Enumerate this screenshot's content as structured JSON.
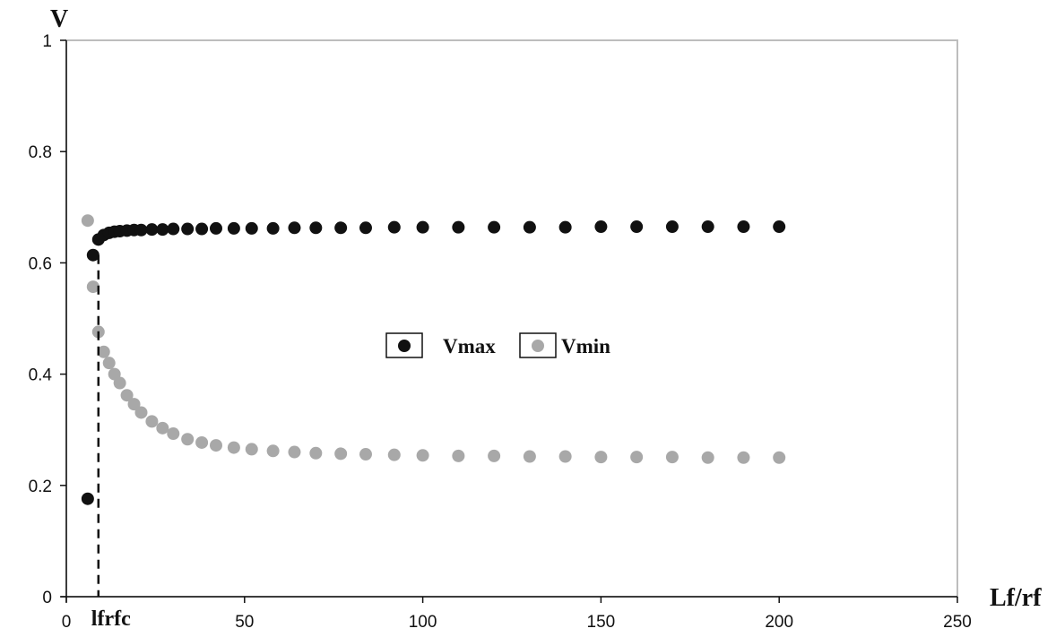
{
  "chart_data": {
    "type": "scatter",
    "title": "",
    "xlabel": "Lf/rf",
    "ylabel": "V",
    "xlim": [
      0,
      250
    ],
    "ylim": [
      0,
      1
    ],
    "x_ticks": [
      "0",
      "50",
      "100",
      "150",
      "200",
      "250"
    ],
    "y_ticks": [
      "0",
      "0.2",
      "0.4",
      "0.6",
      "0.8",
      "1"
    ],
    "grid": false,
    "legend": "center",
    "annotations": [
      {
        "text": "lfrfc",
        "x": 9
      }
    ],
    "series": [
      {
        "name": "Vmax",
        "color": "#111111",
        "x": [
          6,
          7.5,
          9,
          10.5,
          12,
          13.5,
          15,
          17,
          19,
          21,
          24,
          27,
          30,
          34,
          38,
          42,
          47,
          52,
          58,
          64,
          70,
          77,
          84,
          92,
          100,
          110,
          120,
          130,
          140,
          150,
          160,
          170,
          180,
          190,
          200
        ],
        "y": [
          0.176,
          0.614,
          0.642,
          0.65,
          0.654,
          0.656,
          0.657,
          0.658,
          0.659,
          0.659,
          0.66,
          0.66,
          0.661,
          0.661,
          0.661,
          0.662,
          0.662,
          0.662,
          0.662,
          0.663,
          0.663,
          0.663,
          0.663,
          0.664,
          0.664,
          0.664,
          0.664,
          0.664,
          0.664,
          0.665,
          0.665,
          0.665,
          0.665,
          0.665,
          0.665
        ]
      },
      {
        "name": "Vmin",
        "color": "#a8a8a8",
        "x": [
          6,
          7.5,
          9,
          10.5,
          12,
          13.5,
          15,
          17,
          19,
          21,
          24,
          27,
          30,
          34,
          38,
          42,
          47,
          52,
          58,
          64,
          70,
          77,
          84,
          92,
          100,
          110,
          120,
          130,
          140,
          150,
          160,
          170,
          180,
          190,
          200
        ],
        "y": [
          0.676,
          0.557,
          0.476,
          0.44,
          0.42,
          0.4,
          0.384,
          0.362,
          0.346,
          0.331,
          0.315,
          0.303,
          0.293,
          0.283,
          0.277,
          0.272,
          0.268,
          0.265,
          0.262,
          0.26,
          0.258,
          0.257,
          0.256,
          0.255,
          0.254,
          0.253,
          0.253,
          0.252,
          0.252,
          0.251,
          0.251,
          0.251,
          0.25,
          0.25,
          0.25
        ]
      }
    ]
  }
}
